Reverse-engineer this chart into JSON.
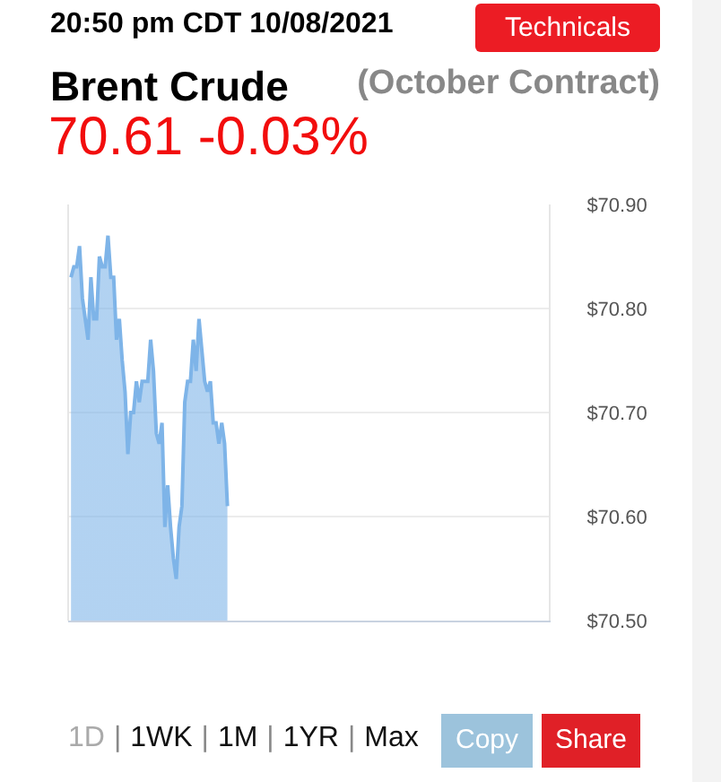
{
  "chart_data": {
    "type": "area",
    "title": "Brent Crude",
    "subtitle": "(October Contract)",
    "annotations": [
      "20:50 pm CDT 10/08/2021",
      "70.61 -0.03%",
      "Technicals",
      "1D",
      "|",
      "1WK",
      "|",
      "1M",
      "|",
      "1YR",
      "|",
      "Max",
      "Copy",
      "Share"
    ],
    "categories": [
      null,
      null,
      null,
      null,
      null,
      null,
      null,
      null,
      null,
      null,
      null,
      null,
      null,
      null,
      null,
      null,
      null,
      null,
      null,
      null,
      null,
      null,
      null,
      null,
      null,
      null,
      null,
      null,
      null,
      null,
      null,
      null,
      null,
      null,
      null,
      null,
      null,
      null,
      null,
      null,
      null,
      null,
      null,
      null,
      null,
      null,
      null,
      null,
      null,
      null,
      null,
      null,
      null,
      null,
      null,
      null,
      null,
      null,
      null,
      null,
      null,
      null,
      null,
      null,
      null,
      null,
      null,
      null,
      null,
      null,
      null,
      null,
      null,
      null,
      null,
      null,
      null,
      null,
      null,
      null,
      null,
      null,
      null,
      null,
      null,
      null,
      null,
      null,
      null,
      null,
      null,
      null,
      null,
      null,
      null,
      null,
      null,
      null,
      null,
      null,
      null,
      null,
      null,
      null,
      null,
      null,
      null,
      null,
      null,
      null,
      null,
      null,
      null,
      null,
      null,
      null,
      null,
      null,
      null,
      null,
      null,
      null,
      null,
      null,
      null,
      null,
      null,
      null,
      null,
      null,
      null,
      null,
      null,
      null,
      null,
      null,
      null,
      null,
      null,
      null,
      null,
      null,
      null,
      null,
      null,
      null,
      null,
      null,
      null,
      null,
      null,
      null,
      null,
      null,
      null,
      null,
      null,
      null,
      null,
      null,
      null,
      null,
      null,
      null,
      null,
      null,
      null,
      null
    ],
    "series": [
      {
        "color": "#7eb4e8",
        "values": [
          70.83,
          70.84,
          70.84,
          70.86,
          70.81,
          70.79,
          70.77,
          70.83,
          70.79,
          70.79,
          70.85,
          70.84,
          70.84,
          70.87,
          70.83,
          70.83,
          70.77,
          70.79,
          70.75,
          70.72,
          70.66,
          70.7,
          70.7,
          70.73,
          70.71,
          70.73,
          70.73,
          70.73,
          70.77,
          70.74,
          70.68,
          70.67,
          70.69,
          70.59,
          70.63,
          70.59,
          70.56,
          70.54,
          70.59,
          70.61,
          70.71,
          70.73,
          70.73,
          70.77,
          70.74,
          70.79,
          70.76,
          70.73,
          70.72,
          70.73,
          70.69,
          70.69,
          70.67,
          70.69,
          70.67,
          70.61,
          null,
          null,
          null,
          null,
          null,
          null,
          null,
          null,
          null,
          null,
          null,
          null,
          null,
          null,
          null,
          null,
          null,
          null,
          null,
          null,
          null,
          null,
          null,
          null,
          null,
          null,
          null,
          null,
          null,
          null,
          null,
          null,
          null,
          null,
          null,
          null,
          null,
          null,
          null,
          null,
          null,
          null,
          null,
          null,
          null,
          null,
          null,
          null,
          null,
          null,
          null,
          null,
          null,
          null,
          null,
          null,
          null,
          null,
          null,
          null,
          null,
          null,
          null,
          null,
          null,
          null,
          null,
          null,
          null,
          null,
          null,
          null,
          null,
          null,
          null,
          null,
          null,
          null,
          null,
          null,
          null,
          null,
          null,
          null,
          null,
          null,
          null,
          null,
          null,
          null,
          null,
          null,
          null,
          null,
          null,
          null,
          null,
          null,
          null,
          null,
          null,
          null,
          null,
          null,
          null,
          null,
          null,
          null,
          null,
          null,
          null,
          null
        ]
      }
    ],
    "ylim": [
      70.5,
      70.9
    ],
    "yticks": [
      {
        "value": 70.5,
        "label": "$70.50"
      },
      {
        "value": 70.6,
        "label": "$70.60"
      },
      {
        "value": 70.7,
        "label": "$70.70"
      },
      {
        "value": 70.8,
        "label": "$70.80"
      },
      {
        "value": 70.9,
        "label": "$70.90"
      }
    ],
    "tick_labels": "y",
    "grid": "y",
    "marker": "none",
    "line_style": "solid"
  }
}
